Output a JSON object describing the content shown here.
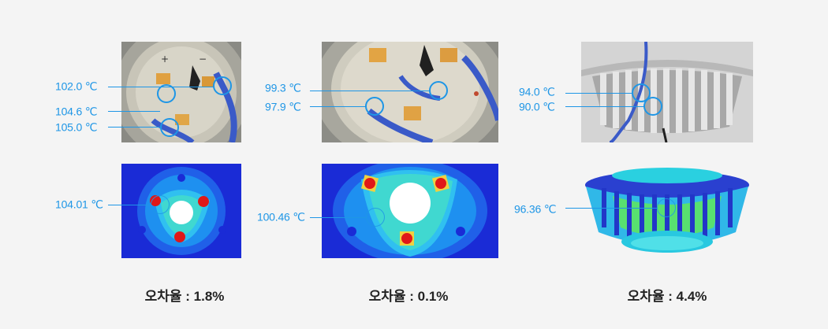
{
  "panels": [
    {
      "photo_labels": [
        "102.0 ℃",
        "104.6 ℃",
        "105.0 ℃"
      ],
      "sim_labels": [
        "104.01 ℃"
      ],
      "error": "오차율 : 1.8%"
    },
    {
      "photo_labels": [
        "99.3 ℃",
        "97.9 ℃"
      ],
      "sim_labels": [
        "100.46 ℃"
      ],
      "error": "오차율 : 0.1%"
    },
    {
      "photo_labels": [
        "94.0 ℃",
        "90.0 ℃"
      ],
      "sim_labels": [
        "96.36 ℃"
      ],
      "error": "오차율 : 4.4%"
    }
  ],
  "colors": {
    "accent": "#1e96e6",
    "sim_blue": "#1a2bd6",
    "sim_red": "#e01818"
  },
  "icons": [
    "measurement-ring-icon"
  ]
}
